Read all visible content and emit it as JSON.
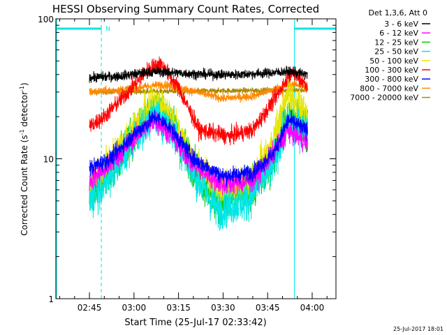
{
  "chart_data": {
    "type": "line",
    "title": "HESSI Observing Summary Count Rates, Corrected",
    "xlabel": "Start Time (25-Jul-17 02:33:42)",
    "ylabel_main": "Corrected Count Rate (s",
    "ylabel_sup1": "-1",
    "ylabel_mid": " detector",
    "ylabel_sup2": "-1",
    "ylabel_end": ")",
    "yscale": "log",
    "ylim": [
      1,
      100
    ],
    "xlim": [
      "02:33:42",
      "04:08:00"
    ],
    "x_ticks": [
      "02:45",
      "03:00",
      "03:15",
      "03:30",
      "03:45",
      "04:00"
    ],
    "y_ticks": [
      "1",
      "10",
      "100"
    ],
    "grid": false,
    "legend_header": "Det 1,3,6, Att 0",
    "legend_placement": "right",
    "footer": "25-Jul-2017 18:01",
    "night_marker": "N",
    "night_intervals": [
      [
        "02:33:42",
        "02:49:00"
      ],
      [
        "03:54:00",
        "04:10:00"
      ]
    ],
    "data_start": "02:45:00",
    "data_end": "03:58:30",
    "series": [
      {
        "name": "3 - 6 keV",
        "color": "#000000",
        "noise": 0.035,
        "x": [
          "02:45",
          "02:55",
          "03:03",
          "03:08",
          "03:15",
          "03:25",
          "03:35",
          "03:45",
          "03:52",
          "03:58"
        ],
        "values": [
          38,
          39,
          41,
          42,
          41,
          40,
          40,
          41,
          42,
          40
        ]
      },
      {
        "name": "6 - 12 keV",
        "color": "#ff00ff",
        "noise": 0.08,
        "x": [
          "02:45",
          "02:52",
          "03:00",
          "03:07",
          "03:12",
          "03:20",
          "03:30",
          "03:40",
          "03:47",
          "03:52",
          "03:58"
        ],
        "values": [
          7,
          9,
          14,
          19,
          15,
          9,
          6.5,
          7,
          11,
          16,
          13
        ]
      },
      {
        "name": "12 - 25 keV",
        "color": "#00cc00",
        "noise": 0.14,
        "x": [
          "02:45",
          "02:52",
          "03:00",
          "03:07",
          "03:12",
          "03:20",
          "03:28",
          "03:38",
          "03:46",
          "03:52",
          "03:58"
        ],
        "values": [
          5.5,
          8,
          15,
          24,
          19,
          9,
          4.8,
          5.5,
          9,
          20,
          17
        ]
      },
      {
        "name": "25 - 50 keV",
        "color": "#00e5e5",
        "noise": 0.14,
        "x": [
          "02:45",
          "02:52",
          "03:00",
          "03:07",
          "03:12",
          "03:20",
          "03:28",
          "03:38",
          "03:46",
          "03:52",
          "03:58"
        ],
        "values": [
          5,
          7.5,
          14,
          21,
          17,
          8,
          4.3,
          5,
          8.5,
          18,
          16
        ]
      },
      {
        "name": "50 - 100 keV",
        "color": "#e5e500",
        "noise": 0.12,
        "x": [
          "02:45",
          "02:52",
          "03:00",
          "03:07",
          "03:12",
          "03:20",
          "03:28",
          "03:38",
          "03:46",
          "03:52",
          "03:58"
        ],
        "values": [
          6.5,
          10,
          17,
          26,
          21,
          10,
          6,
          6.5,
          12,
          30,
          20
        ]
      },
      {
        "name": "100 - 300 keV",
        "color": "#ff0000",
        "noise": 0.06,
        "x": [
          "02:45",
          "02:50",
          "02:58",
          "03:05",
          "03:09",
          "03:15",
          "03:22",
          "03:32",
          "03:40",
          "03:47",
          "03:53",
          "03:58"
        ],
        "values": [
          17,
          20,
          30,
          44,
          48,
          32,
          16,
          14.5,
          16,
          26,
          42,
          34
        ]
      },
      {
        "name": "300 - 800 keV",
        "color": "#0000ff",
        "noise": 0.06,
        "x": [
          "02:45",
          "02:52",
          "03:00",
          "03:07",
          "03:12",
          "03:20",
          "03:30",
          "03:40",
          "03:47",
          "03:52",
          "03:58"
        ],
        "values": [
          8.5,
          10,
          15,
          20,
          17,
          10,
          7.5,
          8,
          11,
          19,
          16
        ]
      },
      {
        "name": "800 - 7000 keV",
        "color": "#ff8800",
        "noise": 0.03,
        "x": [
          "02:45",
          "02:55",
          "03:05",
          "03:10",
          "03:18",
          "03:30",
          "03:40",
          "03:50",
          "03:55",
          "03:58"
        ],
        "values": [
          30,
          31,
          33,
          34,
          31,
          27,
          28,
          33,
          34,
          32
        ]
      },
      {
        "name": "7000 - 20000 keV",
        "color": "#aa8800",
        "noise": 0.02,
        "x": [
          "02:45",
          "03:58"
        ],
        "values": [
          30,
          31
        ]
      }
    ]
  }
}
